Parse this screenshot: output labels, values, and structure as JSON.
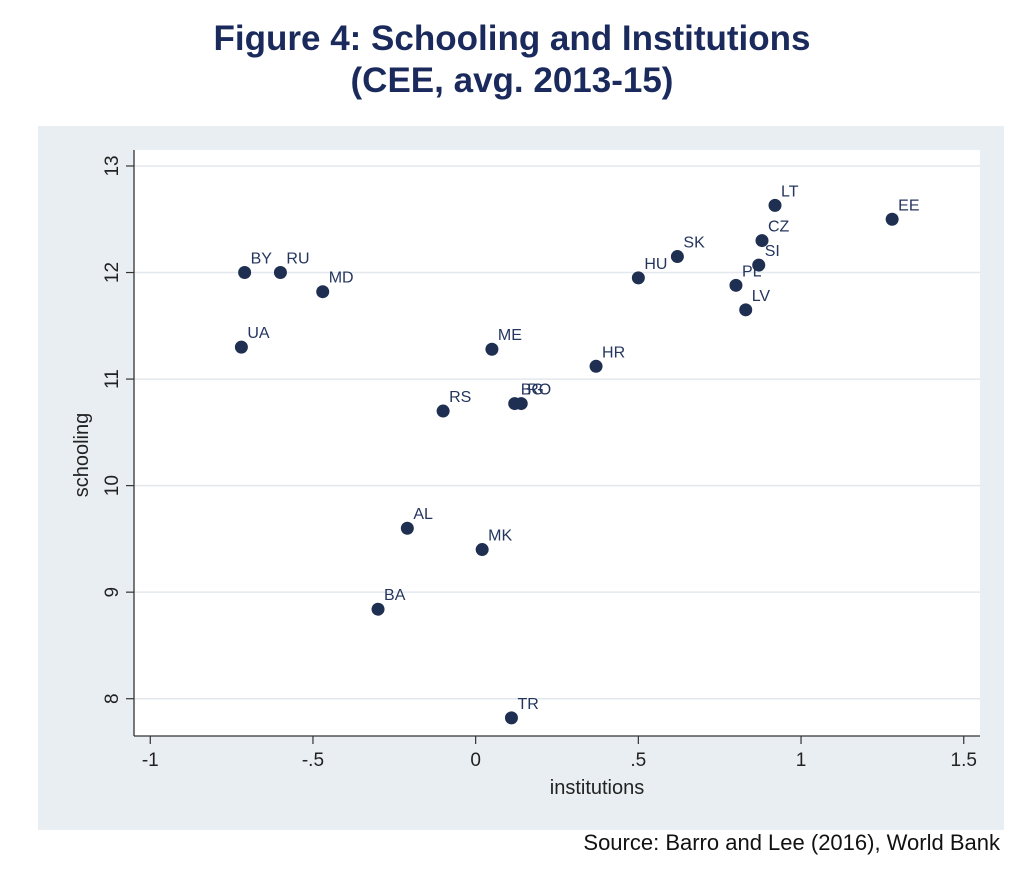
{
  "figure": {
    "title_line1": "Figure 4: Schooling and Institutions",
    "title_line2": "(CEE, avg. 2013-15)",
    "source": "Source: Barro and Lee (2016), World Bank"
  },
  "colors": {
    "title": "#1b2a5c",
    "panel_background": "#e9eef2",
    "plot_background": "#ffffff",
    "gridline": "#e3e8ee",
    "marker": "#1e2f52",
    "point_label": "#24355e"
  },
  "chart_data": {
    "type": "scatter",
    "xlabel": "institutions",
    "ylabel": "schooling",
    "xlim": [
      -1.05,
      1.55
    ],
    "ylim": [
      7.65,
      13.15
    ],
    "xticks": [
      {
        "value": -1,
        "label": "-1"
      },
      {
        "value": -0.5,
        "label": "-.5"
      },
      {
        "value": 0,
        "label": "0"
      },
      {
        "value": 0.5,
        "label": ".5"
      },
      {
        "value": 1,
        "label": "1"
      },
      {
        "value": 1.5,
        "label": "1.5"
      }
    ],
    "yticks": [
      {
        "value": 8,
        "label": "8"
      },
      {
        "value": 9,
        "label": "9"
      },
      {
        "value": 10,
        "label": "10"
      },
      {
        "value": 11,
        "label": "11"
      },
      {
        "value": 12,
        "label": "12"
      },
      {
        "value": 13,
        "label": "13"
      }
    ],
    "grid": "horizontal",
    "legend": "none",
    "points": [
      {
        "label": "BY",
        "x": -0.71,
        "y": 12.0
      },
      {
        "label": "RU",
        "x": -0.6,
        "y": 12.0
      },
      {
        "label": "MD",
        "x": -0.47,
        "y": 11.82
      },
      {
        "label": "UA",
        "x": -0.72,
        "y": 11.3
      },
      {
        "label": "ME",
        "x": 0.05,
        "y": 11.28
      },
      {
        "label": "HR",
        "x": 0.37,
        "y": 11.12
      },
      {
        "label": "BG",
        "x": 0.12,
        "y": 10.77
      },
      {
        "label": "RO",
        "x": 0.14,
        "y": 10.77
      },
      {
        "label": "RS",
        "x": -0.1,
        "y": 10.7
      },
      {
        "label": "AL",
        "x": -0.21,
        "y": 9.6
      },
      {
        "label": "MK",
        "x": 0.02,
        "y": 9.4
      },
      {
        "label": "BA",
        "x": -0.3,
        "y": 8.84
      },
      {
        "label": "TR",
        "x": 0.11,
        "y": 7.82
      },
      {
        "label": "HU",
        "x": 0.5,
        "y": 11.95
      },
      {
        "label": "SK",
        "x": 0.62,
        "y": 12.15
      },
      {
        "label": "PL",
        "x": 0.8,
        "y": 11.88
      },
      {
        "label": "LV",
        "x": 0.83,
        "y": 11.65
      },
      {
        "label": "SI",
        "x": 0.87,
        "y": 12.07
      },
      {
        "label": "CZ",
        "x": 0.88,
        "y": 12.3
      },
      {
        "label": "LT",
        "x": 0.92,
        "y": 12.63
      },
      {
        "label": "EE",
        "x": 1.28,
        "y": 12.5
      }
    ]
  }
}
